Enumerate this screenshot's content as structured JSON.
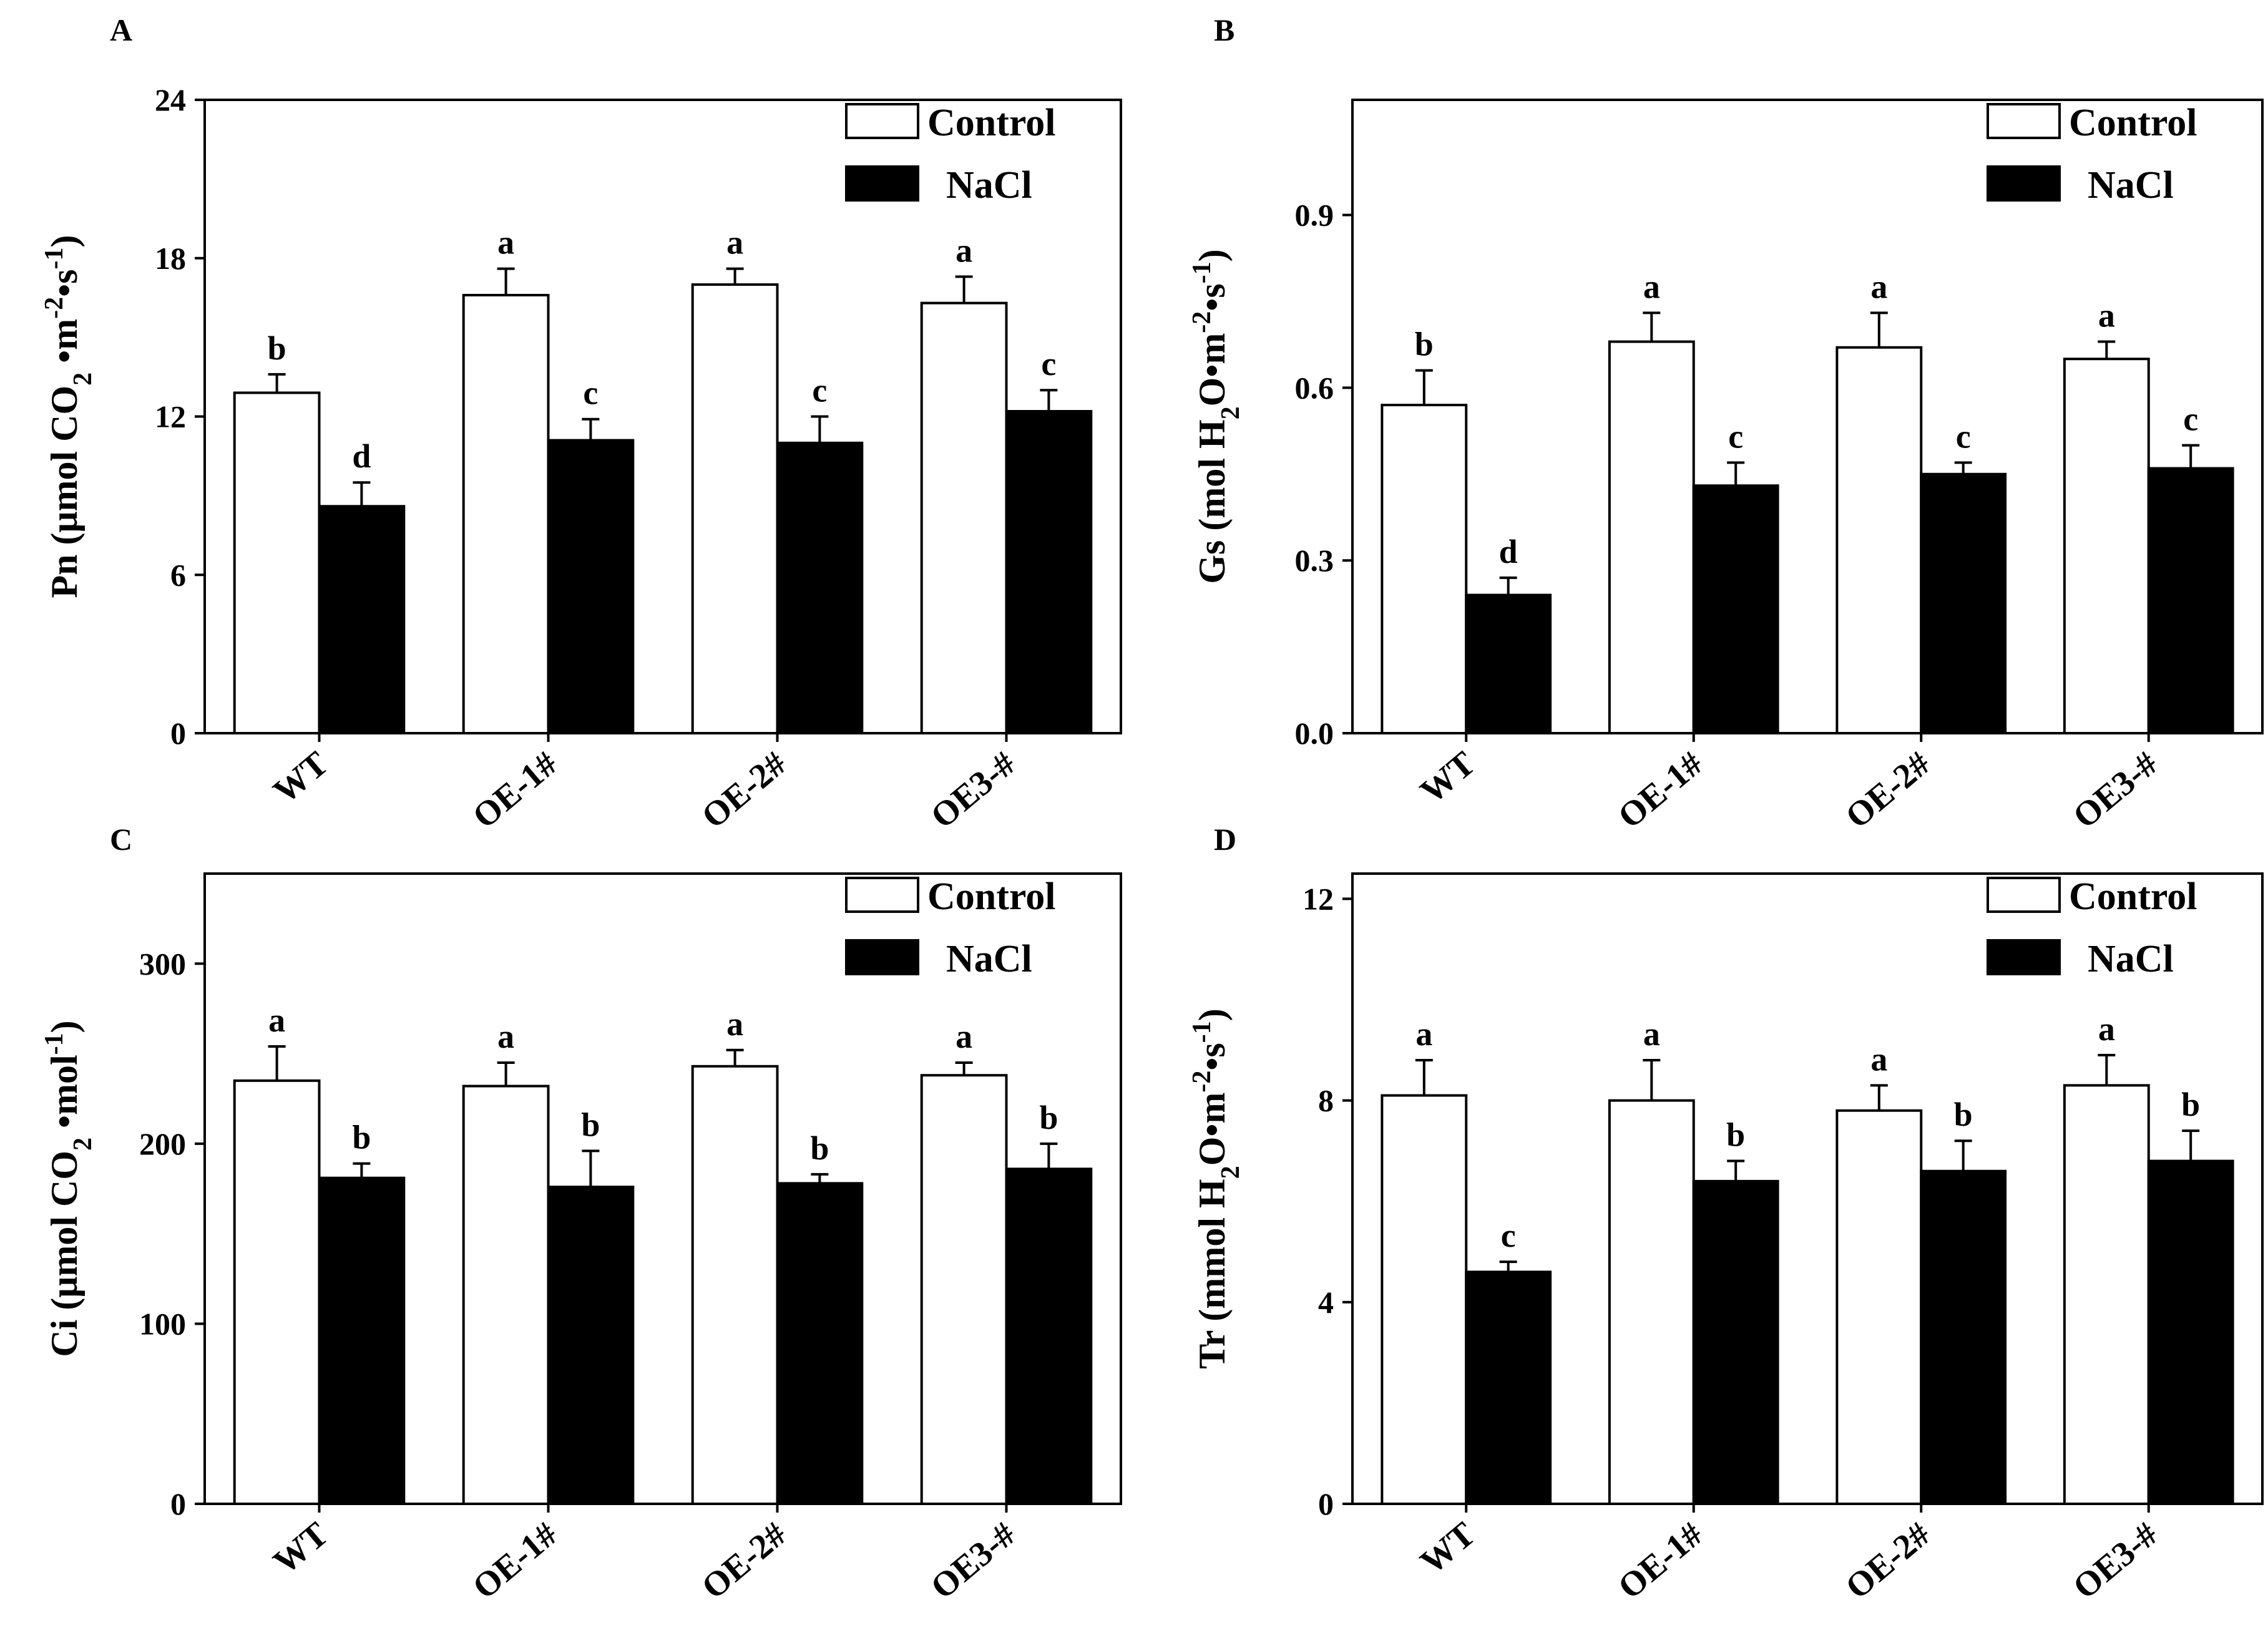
{
  "figure": {
    "legend": {
      "control_label": "Control",
      "nacl_label": "NaCl"
    },
    "categories": [
      "WT",
      "OE-1#",
      "OE-2#",
      "OE3-#"
    ],
    "series_colors": {
      "Control": "#ffffff",
      "NaCl": "#000000"
    }
  },
  "chart_data": [
    {
      "panel": "A",
      "type": "bar",
      "ylabel": {
        "parts": [
          {
            "t": "Pn (μmol CO"
          },
          {
            "t": "2",
            "sub": true
          },
          {
            "t": " •m"
          },
          {
            "t": "-2",
            "sup": true
          },
          {
            "t": "•s"
          },
          {
            "t": "-1",
            "sup": true
          },
          {
            "t": ")"
          }
        ]
      },
      "categories": [
        "WT",
        "OE-1#",
        "OE-2#",
        "OE3-#"
      ],
      "ylim": [
        0,
        24
      ],
      "yticks": [
        0,
        6,
        12,
        18,
        24
      ],
      "tick_decimals": 0,
      "series": [
        {
          "name": "Control",
          "values": [
            12.9,
            16.6,
            17.0,
            16.3
          ],
          "errors": [
            0.7,
            1.0,
            0.6,
            1.0
          ],
          "letters": [
            "b",
            "a",
            "a",
            "a"
          ]
        },
        {
          "name": "NaCl",
          "values": [
            8.6,
            11.1,
            11.0,
            12.2
          ],
          "errors": [
            0.9,
            0.8,
            1.0,
            0.8
          ],
          "letters": [
            "d",
            "c",
            "c",
            "c"
          ]
        }
      ]
    },
    {
      "panel": "B",
      "type": "bar",
      "ylabel": {
        "parts": [
          {
            "t": "Gs (mol H"
          },
          {
            "t": "2",
            "sub": true
          },
          {
            "t": "O•m"
          },
          {
            "t": "-2",
            "sup": true
          },
          {
            "t": "•s"
          },
          {
            "t": "-1",
            "sup": true
          },
          {
            "t": ")"
          }
        ]
      },
      "categories": [
        "WT",
        "OE-1#",
        "OE-2#",
        "OE3-#"
      ],
      "ylim": [
        0,
        1.1
      ],
      "yticks": [
        0.0,
        0.3,
        0.6,
        0.9
      ],
      "tick_decimals": 1,
      "series": [
        {
          "name": "Control",
          "values": [
            0.57,
            0.68,
            0.67,
            0.65
          ],
          "errors": [
            0.06,
            0.05,
            0.06,
            0.03
          ],
          "letters": [
            "b",
            "a",
            "a",
            "a"
          ]
        },
        {
          "name": "NaCl",
          "values": [
            0.24,
            0.43,
            0.45,
            0.46
          ],
          "errors": [
            0.03,
            0.04,
            0.02,
            0.04
          ],
          "letters": [
            "d",
            "c",
            "c",
            "c"
          ]
        }
      ]
    },
    {
      "panel": "C",
      "type": "bar",
      "ylabel": {
        "parts": [
          {
            "t": "Ci (μmol CO"
          },
          {
            "t": "2",
            "sub": true
          },
          {
            "t": " •mol"
          },
          {
            "t": "-1",
            "sup": true
          },
          {
            "t": ")"
          }
        ]
      },
      "categories": [
        "WT",
        "OE-1#",
        "OE-2#",
        "OE3-#"
      ],
      "ylim": [
        0,
        350
      ],
      "yticks": [
        0,
        100,
        200,
        300
      ],
      "tick_decimals": 0,
      "series": [
        {
          "name": "Control",
          "values": [
            235,
            232,
            243,
            238
          ],
          "errors": [
            19,
            13,
            9,
            7
          ],
          "letters": [
            "a",
            "a",
            "a",
            "a"
          ]
        },
        {
          "name": "NaCl",
          "values": [
            181,
            176,
            178,
            186
          ],
          "errors": [
            8,
            20,
            5,
            14
          ],
          "letters": [
            "b",
            "b",
            "b",
            "b"
          ]
        }
      ]
    },
    {
      "panel": "D",
      "type": "bar",
      "ylabel": {
        "parts": [
          {
            "t": "Tr (mmol H"
          },
          {
            "t": "2",
            "sub": true
          },
          {
            "t": "O•m"
          },
          {
            "t": "-2",
            "sup": true
          },
          {
            "t": "•s"
          },
          {
            "t": "-1",
            "sup": true
          },
          {
            "t": ")"
          }
        ]
      },
      "categories": [
        "WT",
        "OE-1#",
        "OE-2#",
        "OE3-#"
      ],
      "ylim": [
        0,
        12.5
      ],
      "yticks": [
        0,
        4,
        8,
        12
      ],
      "tick_decimals": 0,
      "series": [
        {
          "name": "Control",
          "values": [
            8.1,
            8.0,
            7.8,
            8.3
          ],
          "errors": [
            0.7,
            0.8,
            0.5,
            0.6
          ],
          "letters": [
            "a",
            "a",
            "a",
            "a"
          ]
        },
        {
          "name": "NaCl",
          "values": [
            4.6,
            6.4,
            6.6,
            6.8
          ],
          "errors": [
            0.2,
            0.4,
            0.6,
            0.6
          ],
          "letters": [
            "c",
            "b",
            "b",
            "b"
          ]
        }
      ]
    }
  ]
}
